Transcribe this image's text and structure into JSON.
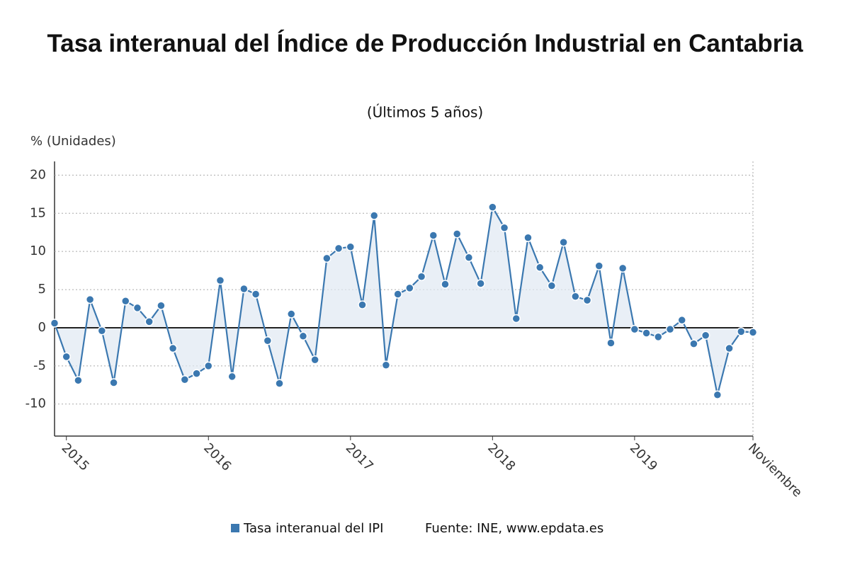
{
  "chart_data": {
    "type": "line",
    "title": "Tasa interanual del Índice de Producción Industrial en Cantabria",
    "subtitle": "(Últimos 5 años)",
    "y_label": "% (Unidades)",
    "source": "Fuente: INE, www.epdata.es",
    "categories": [
      null,
      "2015",
      null,
      null,
      null,
      null,
      null,
      null,
      null,
      null,
      null,
      null,
      null,
      "2016",
      null,
      null,
      null,
      null,
      null,
      null,
      null,
      null,
      null,
      null,
      null,
      "2017",
      null,
      null,
      null,
      null,
      null,
      null,
      null,
      null,
      null,
      null,
      null,
      "2018",
      null,
      null,
      null,
      null,
      null,
      null,
      null,
      null,
      null,
      null,
      null,
      "2019",
      null,
      null,
      null,
      null,
      null,
      null,
      null,
      null,
      null,
      "Noviembre"
    ],
    "series": [
      {
        "name": "Tasa interanual del IPI",
        "color": "#3b78b0",
        "values": [
          0.6,
          -3.8,
          -6.9,
          3.7,
          -0.4,
          -7.2,
          3.5,
          2.6,
          0.8,
          2.9,
          -2.7,
          -6.8,
          -6.0,
          -5.0,
          6.2,
          -6.4,
          5.1,
          4.4,
          -1.7,
          -7.3,
          1.8,
          -1.1,
          -4.2,
          9.1,
          10.4,
          10.6,
          3.0,
          14.7,
          -4.9,
          4.4,
          5.2,
          6.7,
          12.1,
          5.7,
          12.3,
          9.2,
          5.8,
          15.8,
          13.1,
          1.2,
          11.8,
          7.9,
          5.5,
          11.2,
          4.1,
          3.6,
          8.1,
          -2.0,
          7.8,
          -0.2,
          -0.7,
          -1.2,
          -0.2,
          1.0,
          -2.1,
          -1.0,
          -8.8,
          -2.7,
          -0.5,
          -0.6
        ]
      }
    ],
    "ylim": [
      -14.2,
      21.8
    ],
    "yticks": [
      -10,
      -5,
      0,
      5,
      10,
      15,
      20
    ],
    "grid": true
  }
}
